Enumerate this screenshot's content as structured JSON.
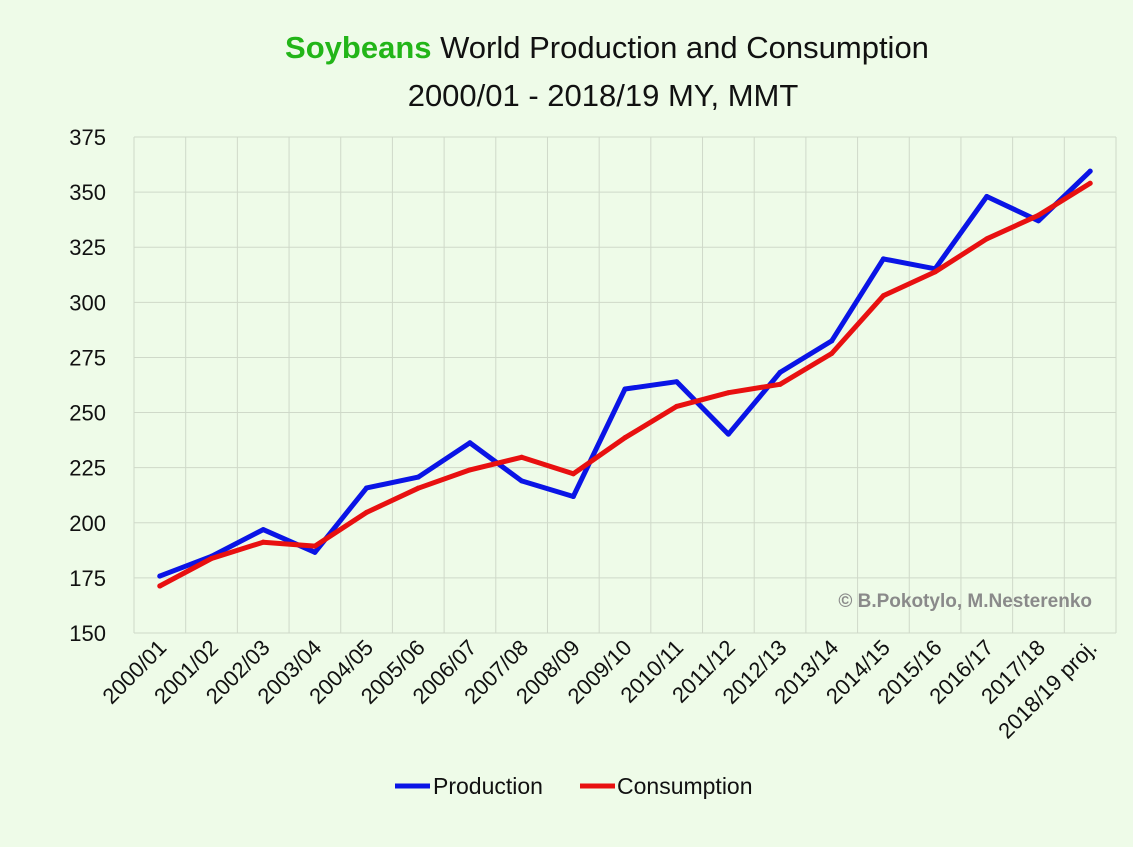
{
  "chart_data": {
    "type": "line",
    "title_highlight": "Soybeans",
    "title_rest": " World Production and Consumption",
    "subtitle": "2000/01 - 2018/19 MY, MMT",
    "xlabel": "",
    "ylabel": "",
    "ylim": [
      150,
      375
    ],
    "yticks": [
      150,
      175,
      200,
      225,
      250,
      275,
      300,
      325,
      350,
      375
    ],
    "grid": true,
    "legend_position": "bottom-center",
    "categories": [
      "2000/01",
      "2001/02",
      "2002/03",
      "2003/04",
      "2004/05",
      "2005/06",
      "2006/07",
      "2007/08",
      "2008/09",
      "2009/10",
      "2010/11",
      "2011/12",
      "2012/13",
      "2013/14",
      "2014/15",
      "2015/16",
      "2016/17",
      "2017/18",
      "2018/19 proj."
    ],
    "series": [
      {
        "name": "Production",
        "color": "#0a14e6",
        "values": [
          175.8,
          184.8,
          196.9,
          186.6,
          215.8,
          220.7,
          236.3,
          219.0,
          211.9,
          260.7,
          264.0,
          240.2,
          268.2,
          282.5,
          319.7,
          315.2,
          348.0,
          337.0,
          359.5
        ]
      },
      {
        "name": "Consumption",
        "color": "#e81010",
        "values": [
          171.3,
          183.8,
          191.2,
          189.4,
          204.7,
          215.7,
          224.0,
          229.7,
          222.2,
          238.6,
          252.8,
          259.0,
          262.8,
          276.8,
          303.0,
          313.8,
          328.8,
          339.5,
          354.0
        ]
      }
    ],
    "annotation": "© B.Pokotylo, M.Nesterenko",
    "title_highlight_color": "#22b518"
  }
}
